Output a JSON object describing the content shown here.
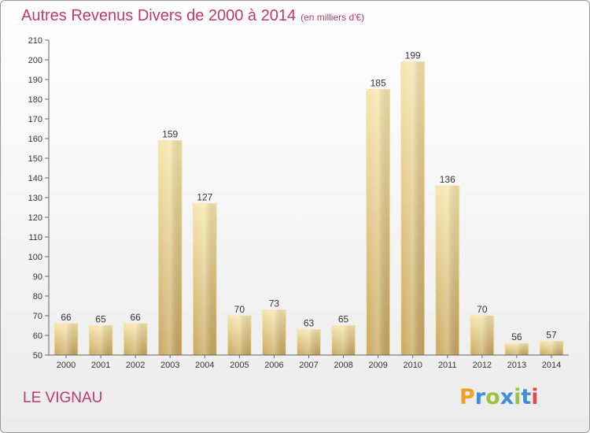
{
  "chart_data": {
    "type": "bar",
    "title": "Autres Revenus Divers de 2000 à 2014",
    "subtitle": "(en milliers d'€)",
    "categories": [
      "2000",
      "2001",
      "2002",
      "2003",
      "2004",
      "2005",
      "2006",
      "2007",
      "2008",
      "2009",
      "2010",
      "2011",
      "2012",
      "2013",
      "2014"
    ],
    "values": [
      66,
      65,
      66,
      159,
      127,
      70,
      73,
      63,
      65,
      185,
      199,
      136,
      70,
      56,
      57
    ],
    "ylim": [
      50,
      210
    ],
    "yticks": [
      50,
      60,
      70,
      80,
      90,
      100,
      110,
      120,
      130,
      140,
      150,
      160,
      170,
      180,
      190,
      200,
      210
    ],
    "xlabel": "",
    "ylabel": "",
    "grid": false,
    "bar_color": "#e9cf86",
    "bar_color_light": "#f7e6ac",
    "bar_color_dark": "#c9a85e"
  },
  "commune": "LE VIGNAU",
  "logo": {
    "letters": [
      "P",
      "r",
      "o",
      "x",
      "i",
      "t",
      "i"
    ],
    "colors": [
      "#f0a028",
      "#3d8fd8",
      "#9bc53d",
      "#3d8fd8",
      "#9bc53d",
      "#3d8fd8",
      "#e24b4b"
    ]
  },
  "colors": {
    "title": "#c0396b",
    "axis": "#666666"
  }
}
